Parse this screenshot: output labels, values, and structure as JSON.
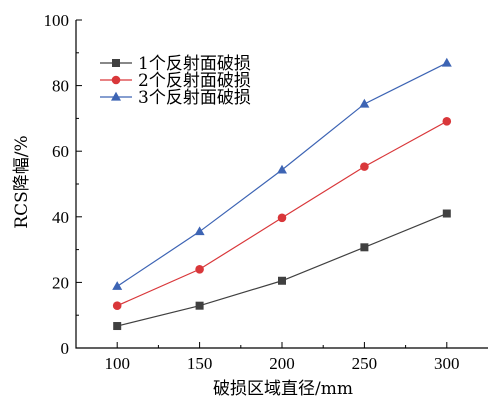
{
  "chart_data": {
    "type": "line",
    "title": "",
    "xlabel": "破损区域直径/mm",
    "ylabel": "RCS降幅/%",
    "x": [
      100,
      150,
      200,
      250,
      300
    ],
    "xlim": [
      75,
      325
    ],
    "ylim": [
      0,
      100
    ],
    "x_ticks": [
      "100",
      "150",
      "200",
      "250",
      "300"
    ],
    "y_ticks": [
      "0",
      "20",
      "40",
      "60",
      "80",
      "100"
    ],
    "grid": false,
    "legend_position": "top-left",
    "series": [
      {
        "name": "1个反射面破损",
        "values": [
          6.7,
          12.9,
          20.5,
          30.7,
          41.0
        ],
        "color": "#404040",
        "marker": "square"
      },
      {
        "name": "2个反射面破损",
        "values": [
          12.9,
          24.0,
          39.7,
          55.3,
          69.1
        ],
        "color": "#d9373a",
        "marker": "circle"
      },
      {
        "name": "3个反射面破损",
        "values": [
          18.8,
          35.5,
          54.3,
          74.4,
          86.9
        ],
        "color": "#3d64b4",
        "marker": "triangle"
      }
    ]
  }
}
